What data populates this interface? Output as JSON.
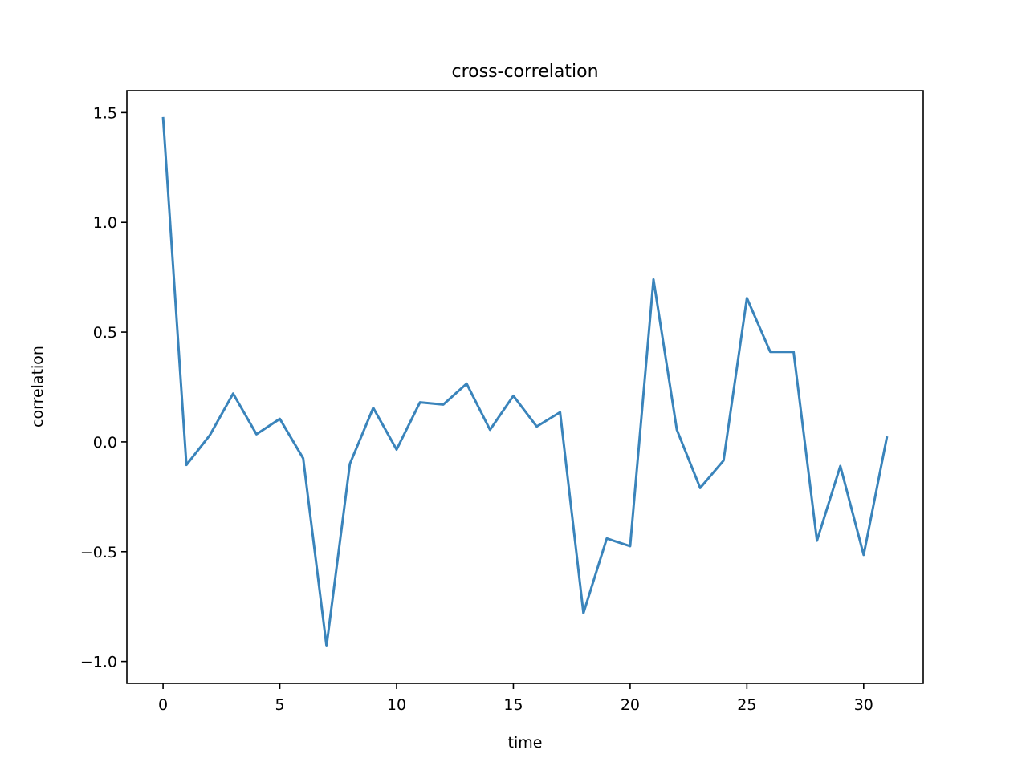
{
  "chart_data": {
    "type": "line",
    "title": "cross-correlation",
    "xlabel": "time",
    "ylabel": "correlation",
    "xlim": [
      -1.55,
      32.55
    ],
    "ylim": [
      -1.1,
      1.6
    ],
    "xticks": [
      0,
      5,
      10,
      15,
      20,
      25,
      30
    ],
    "xtick_labels": [
      "0",
      "5",
      "10",
      "15",
      "20",
      "25",
      "30"
    ],
    "yticks": [
      -1.0,
      -0.5,
      0.0,
      0.5,
      1.0,
      1.5
    ],
    "ytick_labels": [
      "−1.0",
      "−0.5",
      "0.0",
      "0.5",
      "1.0",
      "1.5"
    ],
    "grid": false,
    "line_color": "#3a84bb",
    "x": [
      0,
      1,
      2,
      3,
      4,
      5,
      6,
      7,
      8,
      9,
      10,
      11,
      12,
      13,
      14,
      15,
      16,
      17,
      18,
      19,
      20,
      21,
      22,
      23,
      24,
      25,
      26,
      27,
      28,
      29,
      30,
      31
    ],
    "y": [
      1.48,
      -0.105,
      0.03,
      0.22,
      0.035,
      0.105,
      -0.075,
      -0.93,
      -0.1,
      0.155,
      -0.035,
      0.18,
      0.17,
      0.265,
      0.055,
      0.21,
      0.07,
      0.135,
      -0.78,
      -0.44,
      -0.475,
      0.74,
      0.055,
      -0.21,
      -0.085,
      0.655,
      0.41,
      0.41,
      -0.45,
      -0.11,
      -0.515,
      0.025
    ]
  }
}
